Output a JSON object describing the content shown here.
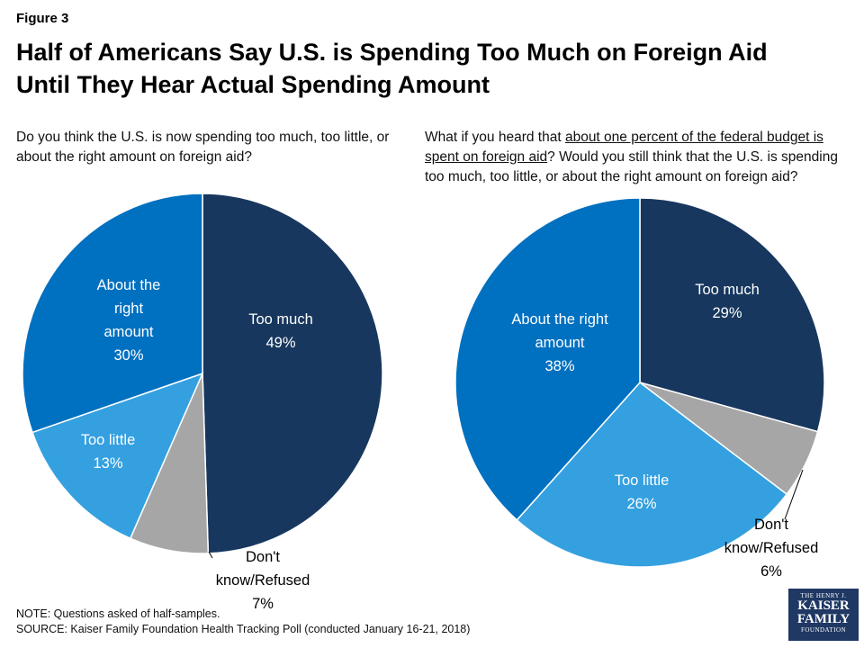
{
  "figure_label": "Figure 3",
  "title_line1": "Half of Americans Say U.S. is Spending Too Much on Foreign Aid",
  "title_line2": "Until They Hear Actual Spending Amount",
  "left_question": "Do you think the U.S. is now spending too much, too little, or about the right amount on foreign aid?",
  "right_question": {
    "part1": "What if you heard that ",
    "underlined": "about one percent of the federal budget is spent on foreign aid",
    "part2": "? Would you still think that the U.S. is spending too much, too little, or about the right amount on foreign aid?"
  },
  "note": "NOTE: Questions asked of half-samples.",
  "source": "SOURCE: Kaiser Family Foundation Health Tracking Poll (conducted January 16-21, 2018)",
  "logo": {
    "line1": "THE HENRY J.",
    "line2a": "KAISER",
    "line2b": "FAMILY",
    "line3": "FOUNDATION"
  },
  "colors": {
    "too_much": "#17375e",
    "dont_know": "#a6a6a6",
    "too_little": "#34a0e0",
    "about_right": "#0070c0"
  },
  "chart_data": [
    {
      "type": "pie",
      "slices": [
        {
          "label_lines": [
            "Too much"
          ],
          "value_text": "49%",
          "value": 49,
          "color_key": "too_much"
        },
        {
          "label_lines": [
            "Don't",
            "know/Refused"
          ],
          "value_text": "7%",
          "value": 7,
          "color_key": "dont_know"
        },
        {
          "label_lines": [
            "Too little"
          ],
          "value_text": "13%",
          "value": 13,
          "color_key": "too_little"
        },
        {
          "label_lines": [
            "About the",
            "right",
            "amount"
          ],
          "value_text": "30%",
          "value": 30,
          "color_key": "about_right"
        }
      ]
    },
    {
      "type": "pie",
      "slices": [
        {
          "label_lines": [
            "Too much"
          ],
          "value_text": "29%",
          "value": 29,
          "color_key": "too_much"
        },
        {
          "label_lines": [
            "Don't",
            "know/Refused"
          ],
          "value_text": "6%",
          "value": 6,
          "color_key": "dont_know"
        },
        {
          "label_lines": [
            "Too little"
          ],
          "value_text": "26%",
          "value": 26,
          "color_key": "too_little"
        },
        {
          "label_lines": [
            "About the right",
            "amount"
          ],
          "value_text": "38%",
          "value": 38,
          "color_key": "about_right"
        }
      ]
    }
  ]
}
